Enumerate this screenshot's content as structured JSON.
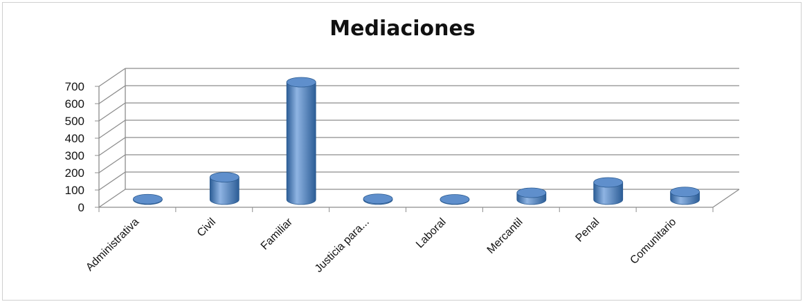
{
  "chart_data": {
    "type": "bar",
    "title": "Mediaciones",
    "categories": [
      "Administrativa",
      "Civil",
      "Familiar",
      "Justicia para...",
      "Laboral",
      "Mercantil",
      "Penal",
      "Comunitario"
    ],
    "values": [
      3,
      130,
      680,
      5,
      2,
      40,
      100,
      45
    ],
    "ylim": [
      0,
      700
    ],
    "yticks": [
      0,
      100,
      200,
      300,
      400,
      500,
      600,
      700
    ],
    "grid": true,
    "legend": "none",
    "bar_shape": "cylinder-3d",
    "colors": {
      "bar": "#4a7ebb",
      "bar_dark": "#2c5d96",
      "bar_light": "#8fb4e3",
      "grid": "#8c8c8c"
    }
  }
}
